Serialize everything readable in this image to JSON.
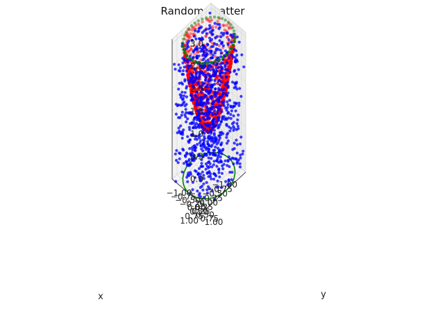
{
  "chart_data": {
    "type": "scatter",
    "title": "Random Scatter",
    "xlabel": "x",
    "ylabel": "y",
    "zlabel": "",
    "xlim": [
      -1.0,
      1.0
    ],
    "ylim": [
      -1.0,
      1.0
    ],
    "zlim": [
      0.0,
      3.0
    ],
    "x_ticks": [
      "−1.00",
      "−0.75",
      "−0.50",
      "−0.25",
      "0.00",
      "0.25",
      "0.50",
      "0.75",
      "1.00"
    ],
    "y_ticks": [
      "−1.00",
      "−0.75",
      "−0.50",
      "−0.25",
      "0.00",
      "0.25",
      "0.50",
      "0.75",
      "1.00"
    ],
    "z_ticks": [
      "0.0",
      "0.5",
      "1.0",
      "1.5",
      "2.0",
      "2.5",
      "3.0"
    ],
    "grid": true,
    "colors": {
      "random": "#0000ff",
      "bowl": "#ff0000",
      "rim": "#008000",
      "circle": "#008000",
      "pane": "#f2f2f2",
      "grid": "#d9d9d9"
    },
    "series": [
      {
        "marker": "point",
        "color": "#0000ff",
        "description_points": 1000,
        "distribution": {
          "x": [
            -1,
            1
          ],
          "y": [
            -1,
            1
          ],
          "z": [
            0,
            3
          ]
        }
      },
      {
        "marker": "point",
        "color": "#ff0000",
        "surface": "z = 1 + 2*r^2 (paraboloid bowl)",
        "z_range": [
          1.0,
          3.0
        ]
      },
      {
        "marker": "point",
        "color": "#008000",
        "points": 40,
        "curve": "circle r=1 at z=3"
      },
      {
        "marker": "line",
        "color": "#008000",
        "curve": "circle r=1 at z=0"
      }
    ]
  }
}
